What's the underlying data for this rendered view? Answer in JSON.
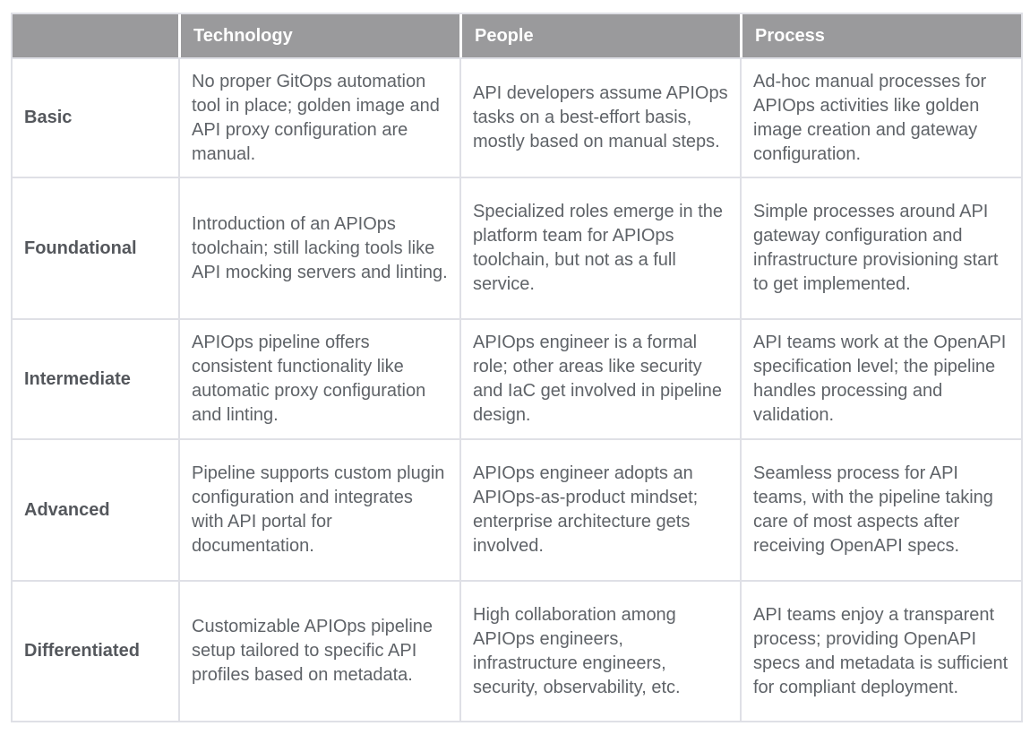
{
  "table": {
    "header": {
      "corner": "",
      "columns": [
        "Technology",
        "People",
        "Process"
      ]
    },
    "rows": [
      {
        "label": "Basic",
        "cells": [
          "No proper GitOps automation tool in place; golden image and API proxy configuration are manual.",
          "API developers assume APIOps tasks on a best-effort basis, mostly based on manual steps.",
          "Ad-hoc manual processes for APIOps activities like golden image creation and gateway configuration."
        ]
      },
      {
        "label": "Foundational",
        "cells": [
          "Introduction of an APIOps toolchain; still lacking tools like API mocking servers and linting.",
          "Specialized roles emerge in the platform team for APIOps toolchain, but not as a full service.",
          "Simple processes around API gateway configuration and infrastructure provisioning start to get implemented."
        ]
      },
      {
        "label": "Intermediate",
        "cells": [
          "APIOps pipeline offers consistent functionality like automatic proxy configuration and linting.",
          "APIOps engineer is a formal role; other areas like security and IaC get involved in pipeline design.",
          "API teams work at the OpenAPI specification level; the pipeline handles processing and validation."
        ]
      },
      {
        "label": "Advanced",
        "cells": [
          "Pipeline supports custom plugin configuration and integrates with API portal for documentation.",
          "APIOps engineer adopts an APIOps-as-product mindset; enterprise architecture gets involved.",
          "Seamless process for API teams, with the pipeline taking care of most aspects after receiving OpenAPI specs."
        ]
      },
      {
        "label": "Differentiated",
        "cells": [
          "Customizable APIOps pipeline setup tailored to specific API profiles based on metadata.",
          "High collaboration among APIOps engineers, infrastructure engineers, security, observability, etc.",
          "API teams enjoy a transparent process; providing OpenAPI specs and metadata is sufficient for compliant deployment."
        ]
      }
    ]
  },
  "colors": {
    "header_bg": "#9a9a9c",
    "header_text": "#ffffff",
    "body_text": "#5f6368",
    "border": "#dfe0e6"
  }
}
